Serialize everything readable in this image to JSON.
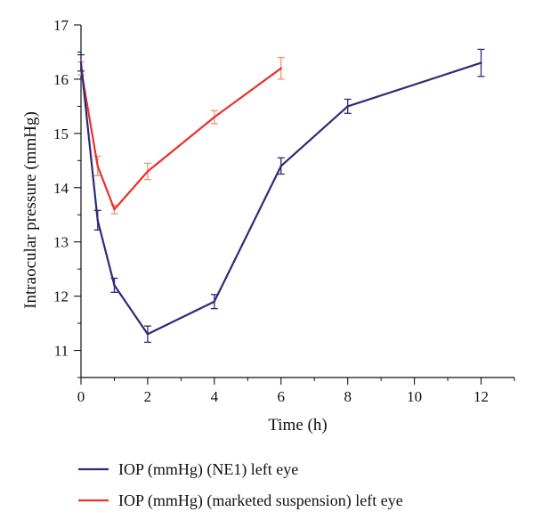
{
  "chart_data": {
    "type": "line",
    "xlabel": "Time (h)",
    "ylabel": "Intraocular pressure (mmHg)",
    "xlim": [
      0,
      13
    ],
    "ylim": [
      10.5,
      17
    ],
    "xticks": [
      0,
      2,
      4,
      6,
      8,
      10,
      12
    ],
    "yticks": [
      11,
      12,
      13,
      14,
      15,
      16,
      17
    ],
    "grid": false,
    "legend_position": "bottom",
    "series": [
      {
        "name": "IOP (mmHg) (NE1) left eye",
        "color": "#2e2a7a",
        "error_color": "#2e2a7a",
        "x": [
          0,
          0.5,
          1,
          2,
          4,
          6,
          8,
          12
        ],
        "y": [
          16.3,
          13.4,
          12.2,
          11.3,
          11.9,
          14.4,
          15.5,
          16.3
        ],
        "error": [
          0.15,
          0.18,
          0.13,
          0.15,
          0.13,
          0.15,
          0.13,
          0.25
        ]
      },
      {
        "name": "IOP (mmHg) (marketed suspension) left eye",
        "color": "#e8312a",
        "error_color": "#f0956a",
        "x": [
          0,
          0.5,
          1,
          2,
          4,
          6
        ],
        "y": [
          16.2,
          14.4,
          13.6,
          14.3,
          15.3,
          16.2
        ],
        "error": [
          0.12,
          0.18,
          0.08,
          0.15,
          0.12,
          0.2
        ]
      }
    ]
  }
}
